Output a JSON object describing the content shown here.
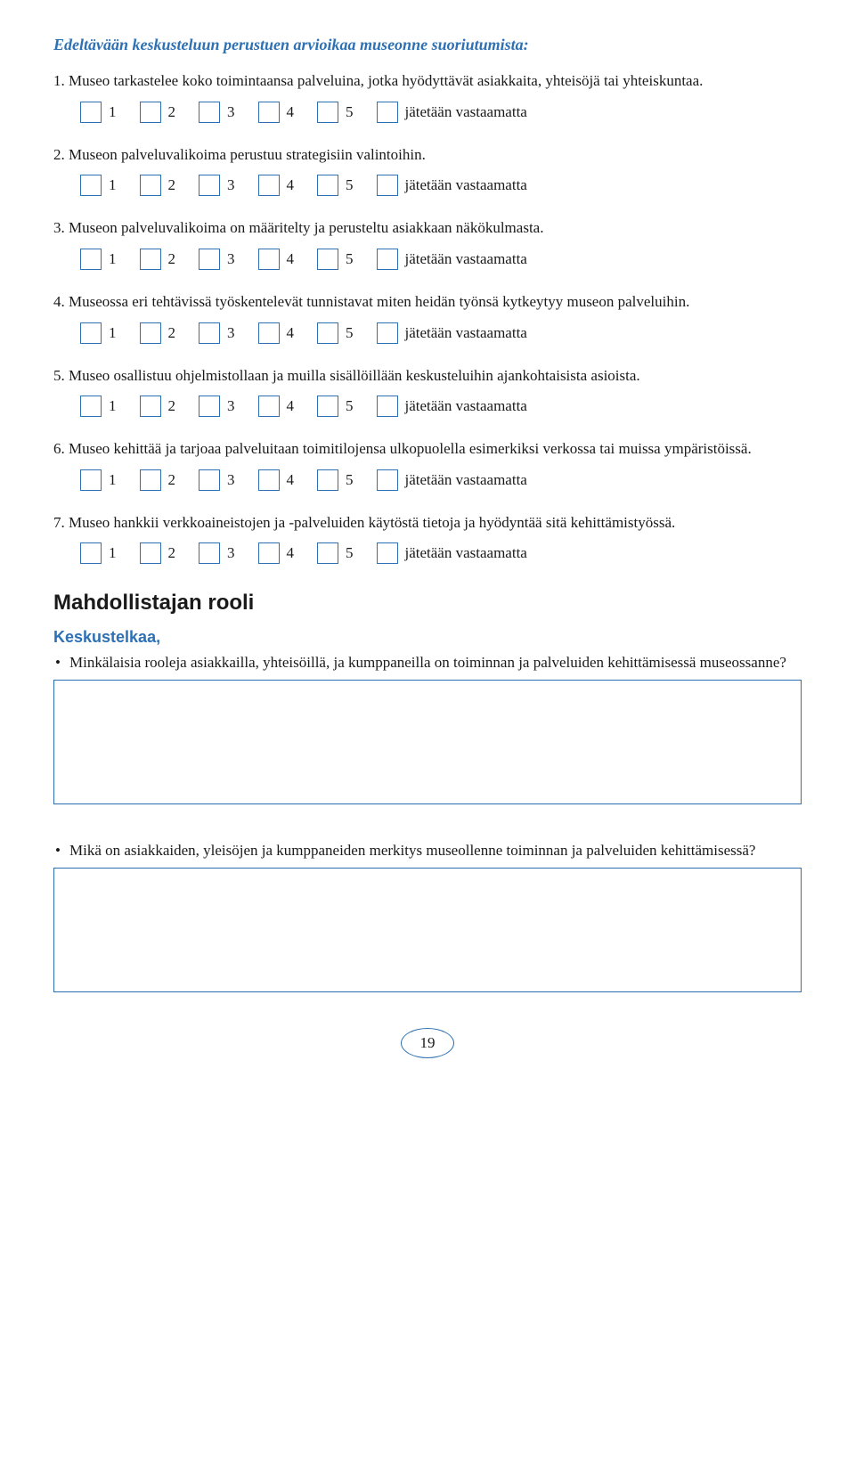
{
  "colors": {
    "accent": "#2d70b3",
    "text": "#1a1a1a",
    "background": "#ffffff"
  },
  "intro": "Edeltävään keskusteluun perustuen arvioikaa museonne suoriutumista:",
  "rating": {
    "options": [
      "1",
      "2",
      "3",
      "4",
      "5"
    ],
    "skip_label": "jätetään vastaamatta"
  },
  "questions": [
    {
      "num": "1.",
      "text": "Museo tarkastelee koko toimintaansa palveluina, jotka hyödyttävät asiakkaita, yhteisöjä tai yhteiskuntaa."
    },
    {
      "num": "2.",
      "text": "Museon palveluvalikoima perustuu strategisiin valintoihin."
    },
    {
      "num": "3.",
      "text": "Museon palveluvalikoima on määritelty ja perusteltu asiakkaan näkökulmasta."
    },
    {
      "num": "4.",
      "text": "Museossa eri tehtävissä työskentelevät tunnistavat miten heidän työnsä kytkeytyy museon palveluihin."
    },
    {
      "num": "5.",
      "text": "Museo osallistuu ohjelmistollaan ja muilla sisällöillään keskusteluihin ajankohtaisista asioista."
    },
    {
      "num": "6.",
      "text": "Museo kehittää ja tarjoaa palveluitaan toimitilojensa ulkopuolella esimerkiksi verkossa tai muissa ympäristöissä."
    },
    {
      "num": "7.",
      "text": "Museo hankkii verkkoaineistojen ja -palveluiden käytöstä tietoja ja hyödyntää sitä kehittämistyössä."
    }
  ],
  "section": {
    "heading": "Mahdollistajan rooli",
    "sub": "Keskustelkaa,",
    "bullets": [
      "Minkälaisia rooleja asiakkailla, yhteisöillä, ja kumppaneilla on toiminnan ja palveluiden kehittämisessä museossanne?",
      "Mikä on asiakkaiden, yleisöjen ja kumppaneiden merkitys museollenne toiminnan ja palveluiden kehittämisessä?"
    ]
  },
  "page_number": "19"
}
